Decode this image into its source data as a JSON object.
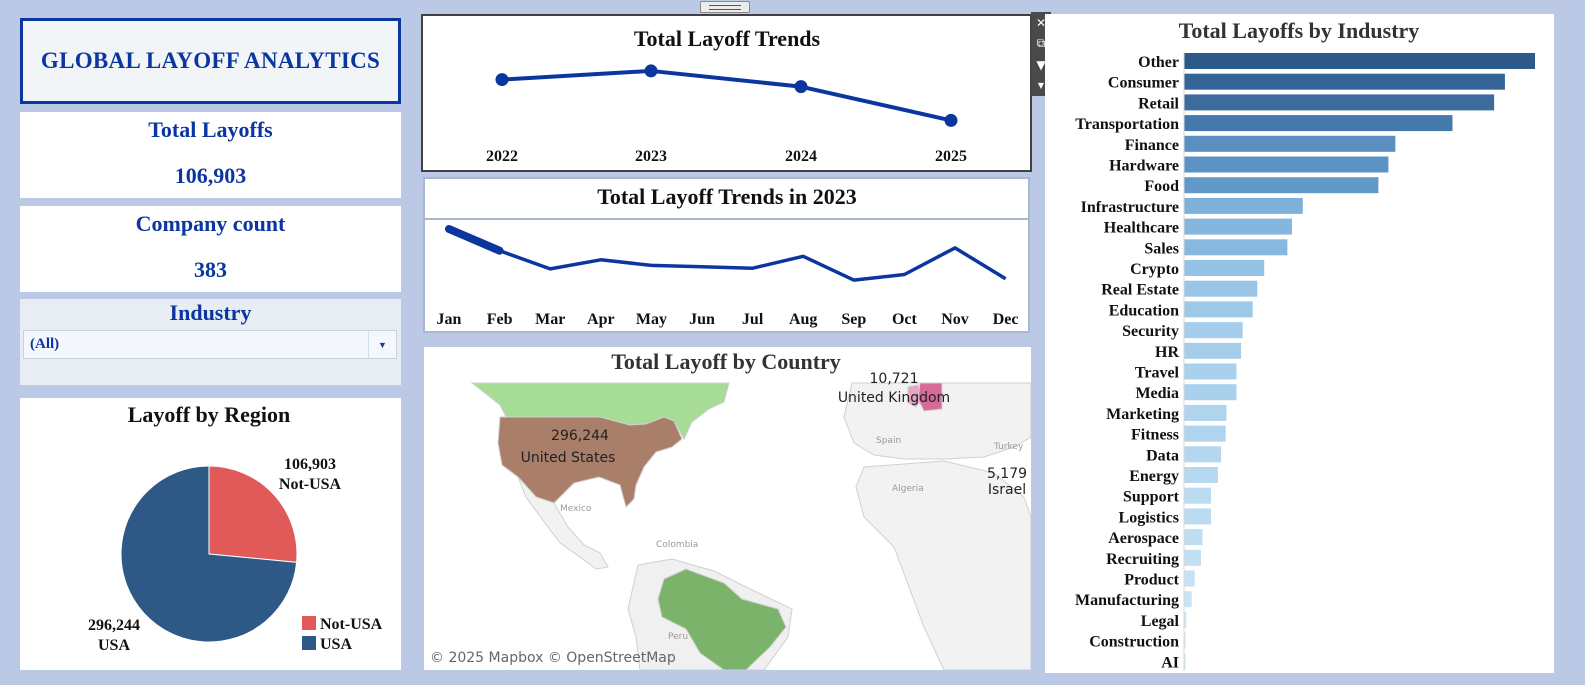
{
  "dashboard": {
    "title": "GLOBAL LAYOFF ANALYTICS",
    "kpis": [
      {
        "label": "Total Layoffs",
        "value": "106,903"
      },
      {
        "label": "Company count",
        "value": "383"
      }
    ],
    "filter": {
      "label": "Industry",
      "selected": "(All)"
    }
  },
  "chart_data": [
    {
      "type": "line",
      "title": "Total Layoff Trends",
      "categories": [
        "2022",
        "2023",
        "2024",
        "2025"
      ],
      "values": [
        110,
        121,
        101,
        58
      ],
      "ylim": [
        0,
        140
      ],
      "color": "#0b36a0"
    },
    {
      "type": "line",
      "title": "Total Layoff Trends in 2023",
      "categories": [
        "Jan",
        "Feb",
        "Mar",
        "Apr",
        "May",
        "Jun",
        "Jul",
        "Aug",
        "Sep",
        "Oct",
        "Nov",
        "Dec"
      ],
      "values": [
        100,
        69,
        43,
        56,
        48,
        46,
        44,
        61,
        27,
        35,
        73,
        29
      ],
      "ylim": [
        0,
        100
      ],
      "color": "#0b36a0"
    },
    {
      "type": "pie",
      "title": "Layoff by Region",
      "slices": [
        {
          "name": "Not-USA",
          "value": 106903,
          "label": "106,903",
          "color": "#e05a5a"
        },
        {
          "name": "USA",
          "value": 296244,
          "label": "296,244",
          "color": "#2e5886"
        }
      ],
      "legend": "bottom-right"
    },
    {
      "type": "bar",
      "orientation": "horizontal",
      "title": "Total Layoffs by Industry",
      "categories": [
        "Other",
        "Consumer",
        "Retail",
        "Transportation",
        "Finance",
        "Hardware",
        "Food",
        "Infrastructure",
        "Healthcare",
        "Sales",
        "Crypto",
        "Real Estate",
        "Education",
        "Security",
        "HR",
        "Travel",
        "Media",
        "Marketing",
        "Fitness",
        "Data",
        "Energy",
        "Support",
        "Logistics",
        "Aerospace",
        "Recruiting",
        "Product",
        "Manufacturing",
        "Legal",
        "Construction",
        "AI"
      ],
      "values": [
        45500,
        41600,
        40200,
        34800,
        27400,
        26500,
        25200,
        15400,
        14000,
        13400,
        10400,
        9500,
        8900,
        7600,
        7400,
        6800,
        6800,
        5500,
        5400,
        4800,
        4400,
        3500,
        3500,
        2400,
        2200,
        1400,
        1000,
        300,
        200,
        100
      ],
      "colors": [
        "#2b5a8a",
        "#336596",
        "#3b6c9c",
        "#4579ab",
        "#5b8fc0",
        "#5d93c4",
        "#6399c9",
        "#7eb1da",
        "#84b6de",
        "#87b9e0",
        "#95c3e6",
        "#99c6e7",
        "#9dc9e8",
        "#a4cdeb",
        "#a6ceeb",
        "#a9d0ec",
        "#a9d0ec",
        "#afd4ee",
        "#b0d4ee",
        "#b4d7ef",
        "#b6d8f0",
        "#bbdbf1",
        "#bbdbf1",
        "#c0def2",
        "#c2dff3",
        "#c6e2f4",
        "#c8e3f4",
        "#cce5f5",
        "#cde6f5",
        "#cee6f6"
      ]
    },
    {
      "type": "map",
      "title": "Total Layoff by Country",
      "labels": [
        {
          "name": "United States",
          "value": "296,244",
          "color": "#a97f6a"
        },
        {
          "name": "Israel",
          "value": "5,179"
        },
        {
          "name": "United Kingdom",
          "value": "10,721",
          "color": "#d86a9a"
        }
      ],
      "base_labels": [
        "Spain",
        "Algeria",
        "Turkey",
        "Mexico",
        "Colombia",
        "Peru"
      ],
      "credit": "© 2025 Mapbox © OpenStreetMap"
    }
  ],
  "colors": {
    "accent": "#0b36a0",
    "usa": "#2e5886",
    "not_usa": "#e05a5a"
  }
}
